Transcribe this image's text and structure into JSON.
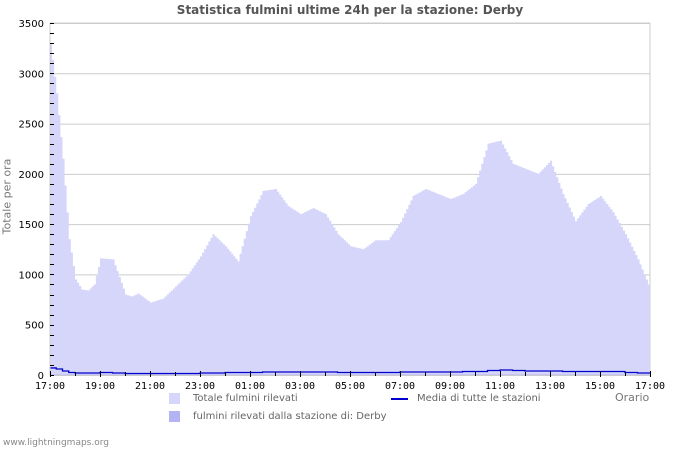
{
  "title": "Statistica fulmini ultime 24h per la stazione: Derby",
  "y_axis_label": "Totale per ora",
  "x_axis_label": "Orario",
  "footer": "www.lightningmaps.org",
  "legend": {
    "total": {
      "label": "Totale fulmini rilevati",
      "color": "#d6d6fa"
    },
    "station": {
      "label": "fulmini rilevati dalla stazione di: Derby",
      "color": "#b4b4f5"
    },
    "average": {
      "label": "Media di tutte le stazioni",
      "color": "#0000cc"
    }
  },
  "colors": {
    "grid": "#cccccc",
    "axis": "#000000",
    "frame": "#cccccc",
    "tick_text": "#000000"
  },
  "chart_data": {
    "type": "area",
    "title": "Statistica fulmini ultime 24h per la stazione: Derby",
    "xlabel": "Orario",
    "ylabel": "Totale per ora",
    "ylim": [
      0,
      3500
    ],
    "yticks": [
      0,
      500,
      1000,
      1500,
      2000,
      2500,
      3000,
      3500
    ],
    "xticks": [
      "17:00",
      "19:00",
      "21:00",
      "23:00",
      "01:00",
      "03:00",
      "05:00",
      "07:00",
      "09:00",
      "11:00",
      "13:00",
      "15:00",
      "17:00"
    ],
    "grid": true,
    "legend_position": "bottom",
    "x_hours": [
      0,
      0.25,
      0.5,
      0.75,
      1,
      1.25,
      1.5,
      1.75,
      2,
      2.5,
      3,
      3.25,
      3.5,
      4,
      4.5,
      5,
      5.5,
      6,
      6.5,
      7,
      7.5,
      8,
      8.5,
      9,
      9.5,
      10,
      10.5,
      11,
      11.5,
      12,
      12.5,
      13,
      13.5,
      14,
      14.5,
      15,
      15.5,
      16,
      16.5,
      17,
      17.5,
      18,
      18.5,
      19,
      19.5,
      20,
      20.5,
      21,
      21.5,
      22,
      22.5,
      23,
      23.5,
      24
    ],
    "series": [
      {
        "name": "Totale fulmini rilevati",
        "type": "area",
        "values": [
          3300,
          2800,
          2150,
          1350,
          950,
          850,
          840,
          900,
          1160,
          1150,
          800,
          780,
          810,
          720,
          760,
          880,
          1000,
          1180,
          1400,
          1280,
          1130,
          1580,
          1830,
          1850,
          1680,
          1600,
          1660,
          1600,
          1400,
          1280,
          1250,
          1340,
          1340,
          1520,
          1780,
          1850,
          1800,
          1750,
          1800,
          1900,
          2300,
          2330,
          2100,
          2050,
          2000,
          2130,
          1800,
          1530,
          1700,
          1780,
          1620,
          1400,
          1150,
          850
        ]
      },
      {
        "name": "fulmini rilevati dalla stazione di: Derby",
        "type": "area",
        "values": [
          5,
          5,
          5,
          5,
          5,
          5,
          5,
          5,
          5,
          5,
          5,
          5,
          5,
          5,
          5,
          5,
          5,
          5,
          5,
          5,
          5,
          5,
          5,
          5,
          5,
          5,
          5,
          5,
          5,
          5,
          5,
          5,
          5,
          5,
          5,
          5,
          5,
          5,
          5,
          5,
          5,
          5,
          5,
          5,
          5,
          5,
          5,
          5,
          5,
          5,
          5,
          5,
          5,
          5
        ]
      },
      {
        "name": "Media di tutte le stazioni",
        "type": "line",
        "values": [
          70,
          60,
          40,
          25,
          20,
          20,
          20,
          20,
          25,
          20,
          15,
          15,
          15,
          15,
          15,
          15,
          15,
          20,
          20,
          25,
          25,
          25,
          30,
          30,
          30,
          30,
          30,
          30,
          25,
          25,
          25,
          25,
          25,
          30,
          30,
          30,
          30,
          30,
          35,
          35,
          45,
          50,
          45,
          40,
          40,
          40,
          35,
          35,
          35,
          35,
          35,
          25,
          20,
          20
        ]
      }
    ]
  }
}
